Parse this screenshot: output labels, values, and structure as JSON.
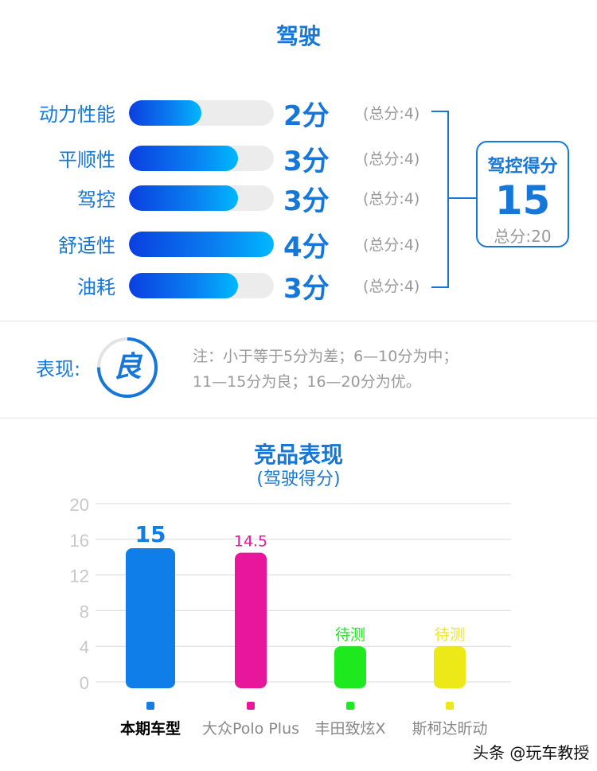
{
  "section_title": "驾驶",
  "ratings": [
    {
      "label": "动力性能",
      "score": 2,
      "score_text": "2分",
      "max_text": "(总分:4)"
    },
    {
      "label": "平顺性",
      "score": 3,
      "score_text": "3分",
      "max_text": "(总分:4)"
    },
    {
      "label": "驾控",
      "score": 3,
      "score_text": "3分",
      "max_text": "(总分:4)"
    },
    {
      "label": "舒适性",
      "score": 4,
      "score_text": "4分",
      "max_text": "(总分:4)"
    },
    {
      "label": "油耗",
      "score": 3,
      "score_text": "3分",
      "max_text": "(总分:4)"
    }
  ],
  "rating_max": 4,
  "total": {
    "label": "驾控得分",
    "value": "15",
    "max_text": "总分:20"
  },
  "performance": {
    "label": "表现:",
    "grade": "良",
    "fill_fraction": 0.75,
    "note_lines": [
      "注：小于等于5分为差；6—10分为中；",
      "11—15分为良；16—20分为优。"
    ]
  },
  "chart_data": {
    "type": "bar",
    "title": "竞品表现",
    "subtitle": "(驾驶得分)",
    "ylim": [
      0,
      20
    ],
    "yticks": [
      0,
      4,
      8,
      12,
      16,
      20
    ],
    "grid": true,
    "categories": [
      "本期车型",
      "大众Polo Plus",
      "丰田致炫X",
      "斯柯达昕动"
    ],
    "values": [
      15,
      14.5,
      4,
      4
    ],
    "value_labels": [
      "15",
      "14.5",
      "待测",
      "待测"
    ],
    "colors": [
      "#0f7ee8",
      "#e8169a",
      "#1ee81e",
      "#ede818"
    ]
  },
  "watermark": "头条 @玩车教授"
}
